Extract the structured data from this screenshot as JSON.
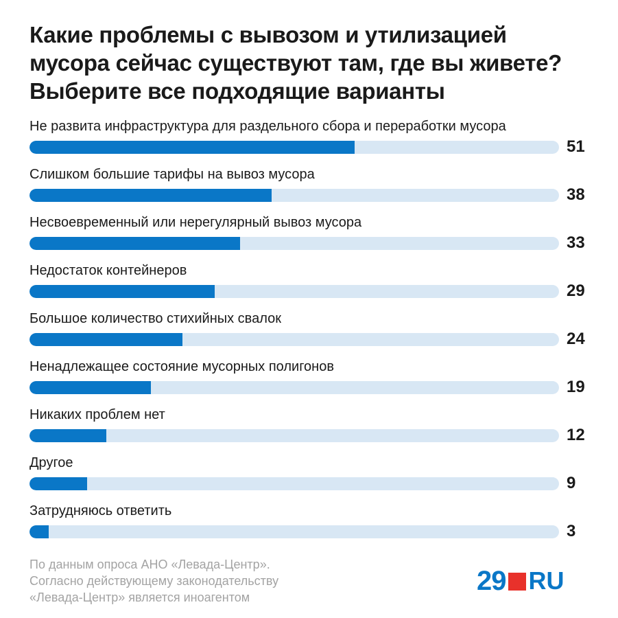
{
  "title_lines": [
    "Какие проблемы с вывозом и утилизацией",
    "мусора сейчас существуют там, где вы живете?",
    "Выберите все подходящие варианты"
  ],
  "chart_data": {
    "type": "bar",
    "orientation": "horizontal",
    "categories": [
      "Не развита инфраструктура для раздельного сбора и переработки мусора",
      "Слишком большие тарифы на вывоз мусора",
      "Несвоевременный или нерегулярный вывоз мусора",
      "Недостаток контейнеров",
      "Большое количество стихийных свалок",
      "Ненадлежащее состояние мусорных полигонов",
      "Никаких проблем нет",
      "Другое",
      "Затрудняюсь ответить"
    ],
    "values": [
      51,
      38,
      33,
      29,
      24,
      19,
      12,
      9,
      3
    ],
    "value_labels": [
      "51",
      "38",
      "33",
      "29",
      "24",
      "19",
      "12",
      "9",
      "3"
    ],
    "xlim": [
      0,
      83
    ],
    "grid": false,
    "colors": {
      "bar": "#0a77c7",
      "track": "#d8e7f4"
    }
  },
  "footer": {
    "lines": [
      "По данным опроса АНО «Левада-Центр».",
      "Согласно действующему законодательству",
      "«Левада-Центр» является иноагентом"
    ]
  },
  "logo": {
    "number": "29",
    "suffix": "RU",
    "brand_color": "#0a77c7",
    "accent_color": "#e8312b"
  }
}
